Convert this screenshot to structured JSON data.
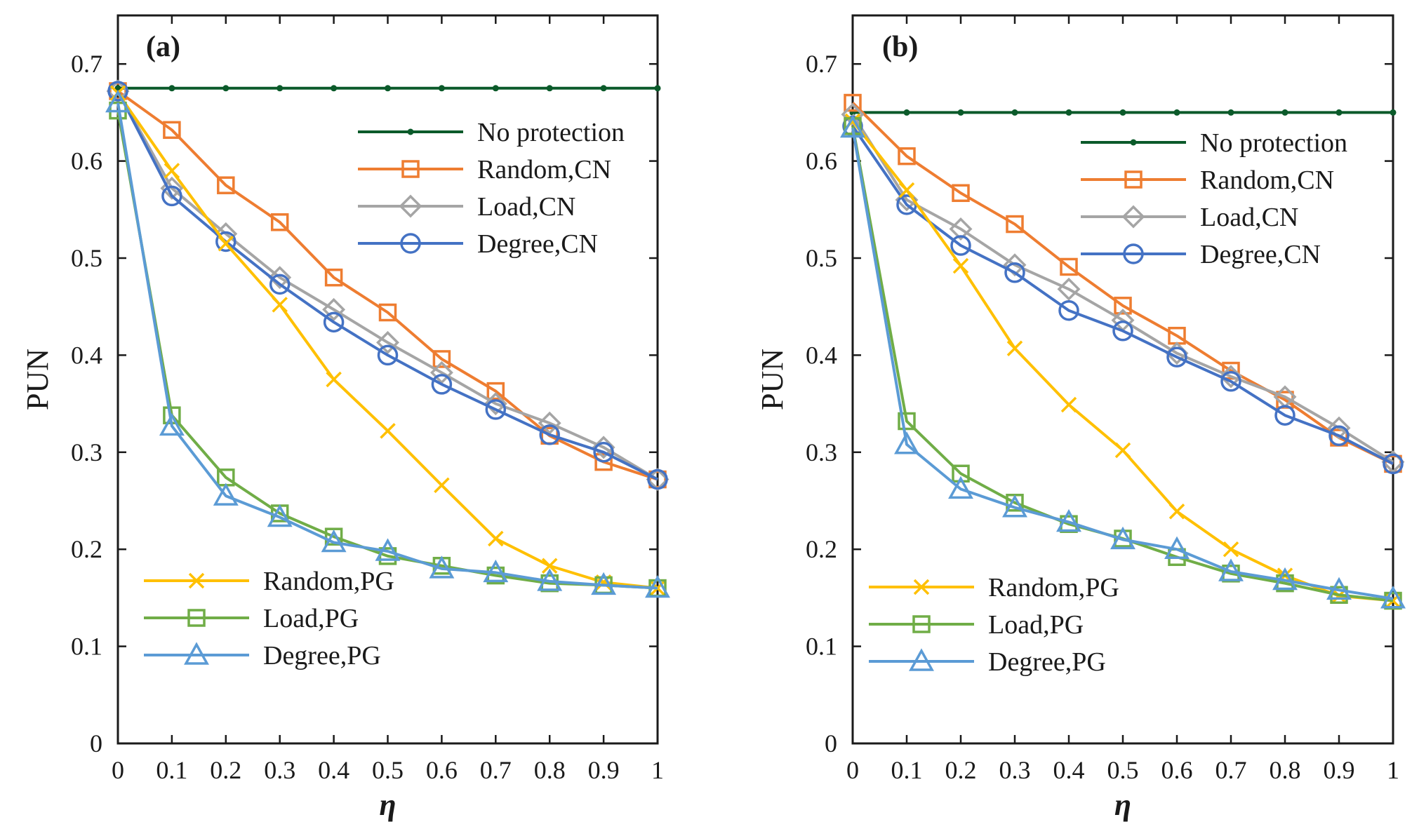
{
  "colors": {
    "no_protection": "#0b5a2a",
    "random_cn": "#ee7d31",
    "load_cn": "#a5a5a5",
    "degree_cn": "#4472c4",
    "random_pg": "#ffc000",
    "load_pg": "#70ad47",
    "degree_pg": "#5b9bd5"
  },
  "chart_data": [
    {
      "type": "line",
      "panel_label": "(a)",
      "xlabel": "η",
      "ylabel": "PUN",
      "xlim": [
        0,
        1
      ],
      "ylim": [
        0,
        0.75
      ],
      "xticks": [
        "0",
        "0.1",
        "0.2",
        "0.3",
        "0.4",
        "0.5",
        "0.6",
        "0.7",
        "0.8",
        "0.9",
        "1"
      ],
      "yticks": [
        "0",
        "0.1",
        "0.2",
        "0.3",
        "0.4",
        "0.5",
        "0.6",
        "0.7"
      ],
      "x": [
        0,
        0.1,
        0.2,
        0.3,
        0.4,
        0.5,
        0.6,
        0.7,
        0.8,
        0.9,
        1
      ],
      "legends": [
        {
          "position": "top-right",
          "entries": [
            "No protection",
            "Random,CN",
            "Load,CN",
            "Degree,CN"
          ]
        },
        {
          "position": "bottom-left",
          "entries": [
            "Random,PG",
            "Load,PG",
            "Degree,PG"
          ]
        }
      ],
      "series": [
        {
          "name": "No protection",
          "key": "no_protection",
          "marker": "dot",
          "values": [
            0.675,
            0.675,
            0.675,
            0.675,
            0.675,
            0.675,
            0.675,
            0.675,
            0.675,
            0.675,
            0.675
          ]
        },
        {
          "name": "Random,CN",
          "key": "random_cn",
          "marker": "square",
          "values": [
            0.672,
            0.632,
            0.575,
            0.537,
            0.48,
            0.444,
            0.396,
            0.363,
            0.317,
            0.29,
            0.272
          ]
        },
        {
          "name": "Load,CN",
          "key": "load_cn",
          "marker": "diamond",
          "values": [
            0.672,
            0.572,
            0.525,
            0.48,
            0.447,
            0.413,
            0.382,
            0.35,
            0.33,
            0.305,
            0.272
          ]
        },
        {
          "name": "Degree,CN",
          "key": "degree_cn",
          "marker": "circle",
          "values": [
            0.672,
            0.564,
            0.517,
            0.473,
            0.434,
            0.4,
            0.37,
            0.344,
            0.318,
            0.3,
            0.272
          ]
        },
        {
          "name": "Random,PG",
          "key": "random_pg",
          "marker": "x",
          "values": [
            0.67,
            0.59,
            0.515,
            0.452,
            0.375,
            0.322,
            0.266,
            0.211,
            0.183,
            0.166,
            0.16
          ]
        },
        {
          "name": "Load,PG",
          "key": "load_pg",
          "marker": "square",
          "values": [
            0.652,
            0.338,
            0.274,
            0.237,
            0.213,
            0.193,
            0.183,
            0.173,
            0.165,
            0.163,
            0.16
          ]
        },
        {
          "name": "Degree,PG",
          "key": "degree_pg",
          "marker": "triangle",
          "values": [
            0.66,
            0.327,
            0.255,
            0.233,
            0.207,
            0.198,
            0.18,
            0.176,
            0.167,
            0.163,
            0.16
          ]
        }
      ]
    },
    {
      "type": "line",
      "panel_label": "(b)",
      "xlabel": "η",
      "ylabel": "PUN",
      "xlim": [
        0,
        1
      ],
      "ylim": [
        0,
        0.75
      ],
      "xticks": [
        "0",
        "0.1",
        "0.2",
        "0.3",
        "0.4",
        "0.5",
        "0.6",
        "0.7",
        "0.8",
        "0.9",
        "1"
      ],
      "yticks": [
        "0",
        "0.1",
        "0.2",
        "0.3",
        "0.4",
        "0.5",
        "0.6",
        "0.7"
      ],
      "x": [
        0,
        0.1,
        0.2,
        0.3,
        0.4,
        0.5,
        0.6,
        0.7,
        0.8,
        0.9,
        1
      ],
      "legends": [
        {
          "position": "top-right",
          "entries": [
            "No protection",
            "Random,CN",
            "Load,CN",
            "Degree,CN"
          ]
        },
        {
          "position": "bottom-left",
          "entries": [
            "Random,PG",
            "Load,PG",
            "Degree,PG"
          ]
        }
      ],
      "series": [
        {
          "name": "No protection",
          "key": "no_protection",
          "marker": "dot",
          "values": [
            0.65,
            0.65,
            0.65,
            0.65,
            0.65,
            0.65,
            0.65,
            0.65,
            0.65,
            0.65,
            0.65
          ]
        },
        {
          "name": "Random,CN",
          "key": "random_cn",
          "marker": "square",
          "values": [
            0.66,
            0.605,
            0.567,
            0.535,
            0.491,
            0.451,
            0.42,
            0.384,
            0.354,
            0.315,
            0.288
          ]
        },
        {
          "name": "Load,CN",
          "key": "load_cn",
          "marker": "diamond",
          "values": [
            0.648,
            0.56,
            0.53,
            0.493,
            0.468,
            0.436,
            0.402,
            0.378,
            0.357,
            0.325,
            0.29
          ]
        },
        {
          "name": "Degree,CN",
          "key": "degree_cn",
          "marker": "circle",
          "values": [
            0.636,
            0.555,
            0.513,
            0.485,
            0.446,
            0.425,
            0.398,
            0.373,
            0.338,
            0.317,
            0.288
          ]
        },
        {
          "name": "Random,PG",
          "key": "random_pg",
          "marker": "x",
          "values": [
            0.641,
            0.57,
            0.492,
            0.407,
            0.349,
            0.302,
            0.239,
            0.2,
            0.173,
            0.152,
            0.147
          ]
        },
        {
          "name": "Load,PG",
          "key": "load_pg",
          "marker": "square",
          "values": [
            0.636,
            0.332,
            0.278,
            0.248,
            0.226,
            0.211,
            0.192,
            0.175,
            0.165,
            0.153,
            0.147
          ]
        },
        {
          "name": "Degree,PG",
          "key": "degree_pg",
          "marker": "triangle",
          "values": [
            0.634,
            0.308,
            0.262,
            0.243,
            0.228,
            0.21,
            0.2,
            0.177,
            0.168,
            0.158,
            0.149
          ]
        }
      ]
    }
  ]
}
